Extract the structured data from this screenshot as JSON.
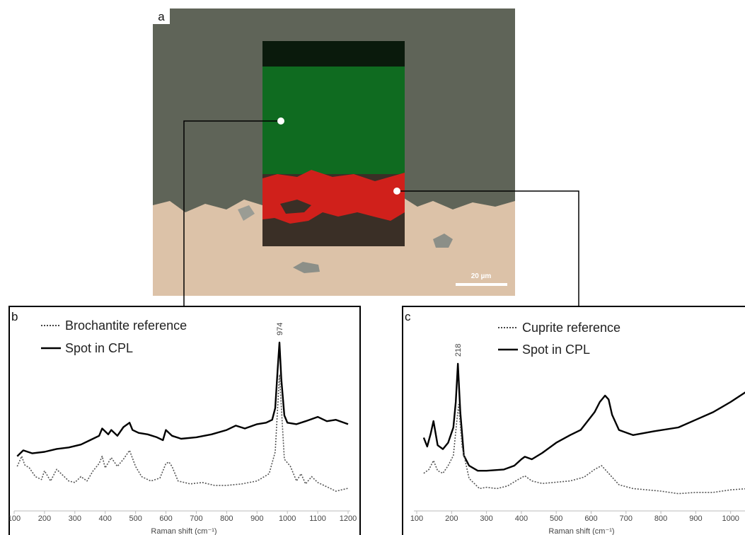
{
  "panel_a": {
    "label": "a",
    "scale_bar_text": "20 µm",
    "colors": {
      "matrix": "#5f6458",
      "metal": "#dcc2a8",
      "map_green": "#0f6b20",
      "map_red": "#d0201b",
      "map_dark": "#3a2f26"
    }
  },
  "chart_data": [
    {
      "panel": "b",
      "type": "line",
      "xlabel": "Raman shift (cm⁻¹)",
      "xlim": [
        100,
        1200
      ],
      "x_ticks": [
        "100",
        "200",
        "300",
        "400",
        "500",
        "600",
        "700",
        "800",
        "900",
        "1000",
        "1100",
        "1200"
      ],
      "y_ticks_shown": false,
      "peak_label": "974",
      "peak_label_x": 974,
      "legend": [
        {
          "label": "Brochantite reference",
          "style": "dotted"
        },
        {
          "label": "Spot in CPL",
          "style": "solid"
        }
      ],
      "series": [
        {
          "name": "Spot in CPL",
          "style": "solid",
          "x": [
            110,
            130,
            160,
            200,
            240,
            280,
            320,
            350,
            380,
            390,
            410,
            420,
            440,
            460,
            480,
            490,
            510,
            540,
            570,
            590,
            600,
            610,
            620,
            650,
            700,
            750,
            800,
            830,
            860,
            900,
            930,
            950,
            960,
            968,
            974,
            980,
            990,
            1000,
            1030,
            1060,
            1100,
            1130,
            1160,
            1200
          ],
          "y": [
            0.22,
            0.26,
            0.24,
            0.25,
            0.27,
            0.28,
            0.3,
            0.33,
            0.36,
            0.41,
            0.37,
            0.4,
            0.36,
            0.42,
            0.45,
            0.4,
            0.38,
            0.37,
            0.35,
            0.33,
            0.4,
            0.38,
            0.36,
            0.34,
            0.35,
            0.37,
            0.4,
            0.43,
            0.41,
            0.44,
            0.45,
            0.47,
            0.55,
            0.82,
            1.0,
            0.75,
            0.5,
            0.45,
            0.44,
            0.46,
            0.49,
            0.46,
            0.47,
            0.44
          ]
        },
        {
          "name": "Brochantite reference",
          "style": "dotted",
          "x": [
            110,
            125,
            135,
            150,
            170,
            190,
            200,
            220,
            240,
            260,
            280,
            300,
            320,
            340,
            360,
            380,
            390,
            400,
            420,
            440,
            460,
            480,
            500,
            520,
            550,
            580,
            600,
            610,
            620,
            640,
            680,
            720,
            760,
            800,
            850,
            900,
            940,
            960,
            974,
            990,
            1010,
            1030,
            1045,
            1060,
            1080,
            1100,
            1130,
            1160,
            1200
          ],
          "y": [
            0.15,
            0.22,
            0.16,
            0.14,
            0.08,
            0.06,
            0.12,
            0.05,
            0.13,
            0.09,
            0.05,
            0.04,
            0.08,
            0.05,
            0.12,
            0.17,
            0.22,
            0.14,
            0.21,
            0.15,
            0.2,
            0.26,
            0.15,
            0.08,
            0.05,
            0.07,
            0.17,
            0.18,
            0.15,
            0.05,
            0.03,
            0.04,
            0.02,
            0.02,
            0.03,
            0.05,
            0.1,
            0.25,
            0.78,
            0.2,
            0.15,
            0.05,
            0.1,
            0.03,
            0.08,
            0.04,
            0.01,
            -0.02,
            0.0
          ]
        }
      ]
    },
    {
      "panel": "c",
      "type": "line",
      "xlabel": "Raman shift (cm⁻¹)",
      "xlim": [
        100,
        1100
      ],
      "x_ticks": [
        "100",
        "200",
        "300",
        "400",
        "500",
        "600",
        "700",
        "800",
        "900",
        "1000"
      ],
      "y_ticks_shown": false,
      "peak_label": "218",
      "peak_label_x": 218,
      "legend": [
        {
          "label": "Cuprite reference",
          "style": "dotted"
        },
        {
          "label": "Spot in CPL",
          "style": "solid"
        }
      ],
      "series": [
        {
          "name": "Spot in CPL",
          "style": "solid",
          "x": [
            120,
            130,
            140,
            148,
            160,
            175,
            190,
            205,
            212,
            218,
            225,
            235,
            250,
            275,
            300,
            350,
            380,
            400,
            410,
            430,
            460,
            500,
            540,
            570,
            590,
            610,
            625,
            640,
            650,
            660,
            680,
            720,
            780,
            850,
            900,
            950,
            1000,
            1050,
            1080,
            1100
          ],
          "y": [
            0.42,
            0.35,
            0.45,
            0.55,
            0.36,
            0.33,
            0.38,
            0.5,
            0.7,
            1.0,
            0.62,
            0.28,
            0.2,
            0.16,
            0.16,
            0.17,
            0.2,
            0.25,
            0.27,
            0.25,
            0.3,
            0.38,
            0.44,
            0.48,
            0.55,
            0.62,
            0.7,
            0.75,
            0.72,
            0.6,
            0.48,
            0.44,
            0.47,
            0.5,
            0.56,
            0.62,
            0.7,
            0.79,
            0.82,
            0.8
          ]
        },
        {
          "name": "Cuprite reference",
          "style": "dotted",
          "x": [
            120,
            135,
            148,
            160,
            175,
            190,
            205,
            215,
            220,
            230,
            250,
            280,
            300,
            330,
            360,
            390,
            410,
            430,
            460,
            500,
            540,
            580,
            610,
            630,
            650,
            680,
            720,
            760,
            800,
            850,
            900,
            950,
            1000,
            1050,
            1100
          ],
          "y": [
            0.14,
            0.17,
            0.24,
            0.16,
            0.14,
            0.2,
            0.28,
            0.55,
            0.68,
            0.35,
            0.1,
            0.02,
            0.03,
            0.02,
            0.04,
            0.09,
            0.12,
            0.08,
            0.06,
            0.07,
            0.08,
            0.11,
            0.17,
            0.2,
            0.14,
            0.05,
            0.02,
            0.01,
            0.0,
            -0.02,
            -0.01,
            -0.01,
            0.01,
            0.02,
            0.02
          ]
        }
      ]
    }
  ]
}
